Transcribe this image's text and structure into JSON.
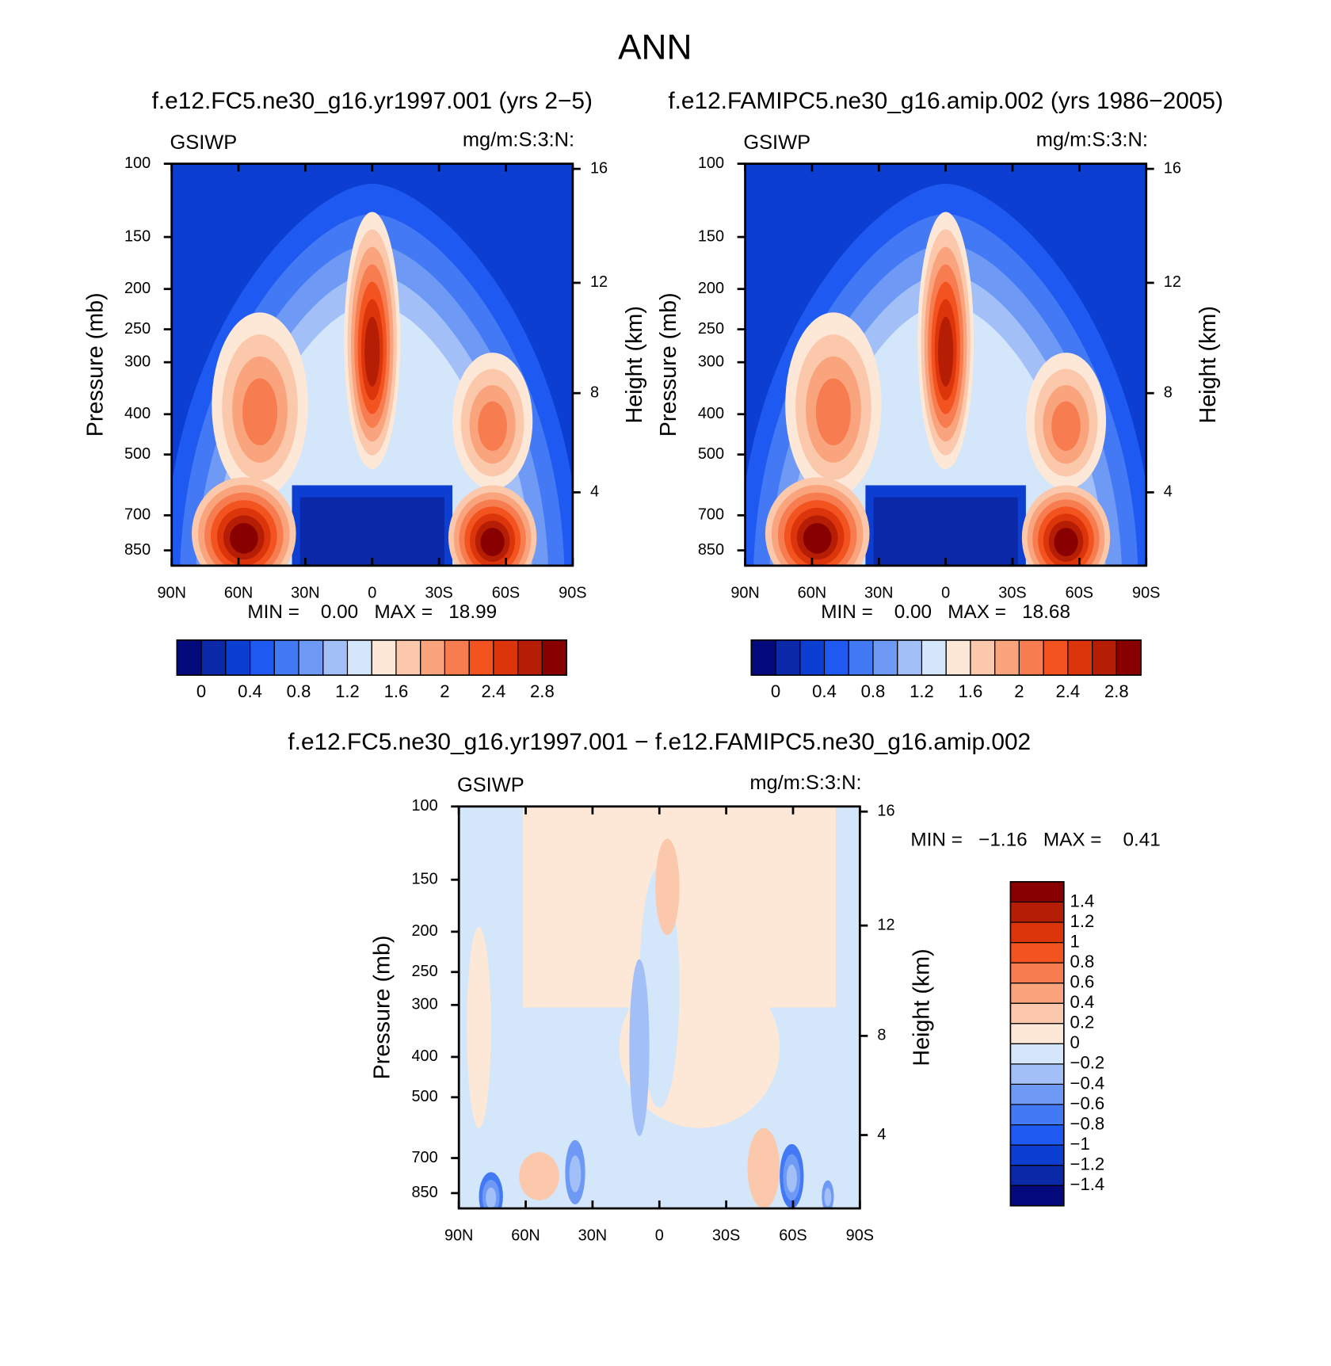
{
  "title": "ANN",
  "chart_data": [
    {
      "type": "contour",
      "title": "f.e12.FC5.ne30_g16.yr1997.001 (yrs 2−5)",
      "left_label": "GSIWP",
      "right_label": "mg/m:S:3:N:",
      "ylabel": "Pressure (mb)",
      "y2label": "Height (km)",
      "xlim": [
        90,
        -90
      ],
      "xticks": [
        {
          "value": 90,
          "label": "90N"
        },
        {
          "value": 60,
          "label": "60N"
        },
        {
          "value": 30,
          "label": "30N"
        },
        0,
        {
          "value": -30,
          "label": "30S"
        },
        {
          "value": -60,
          "label": "60S"
        },
        {
          "value": -90,
          "label": "90S"
        }
      ],
      "ylim": [
        100,
        925
      ],
      "yscale": "log",
      "yticks": [
        100,
        150,
        200,
        250,
        300,
        400,
        500,
        700,
        850
      ],
      "y2scale": "standard-atmosphere",
      "y2ticks": [
        4,
        8,
        12,
        16
      ],
      "stats": "MIN =    0.00   MAX =   18.99",
      "colorbar": "horizontal",
      "levels": [
        0,
        0.2,
        0.4,
        0.6,
        0.8,
        1,
        1.2,
        1.4,
        1.6,
        1.8,
        2,
        2.2,
        2.4,
        2.6,
        2.8
      ],
      "colorbar_ticks": [
        0,
        0.4,
        0.8,
        1.2,
        1.6,
        2,
        2.4,
        2.8
      ],
      "colors": [
        "#040a7c",
        "#0a28a8",
        "#0c3ed2",
        "#1e5af2",
        "#4479f5",
        "#6e9af6",
        "#a2c0f7",
        "#d4e6fa",
        "#fde8d8",
        "#fcc8ac",
        "#f9a47c",
        "#f77c50",
        "#f3531f",
        "#dc350b",
        "#b51d05",
        "#880000"
      ]
    },
    {
      "type": "contour",
      "title": "f.e12.FAMIPC5.ne30_g16.amip.002 (yrs 1986−2005)",
      "left_label": "GSIWP",
      "right_label": "mg/m:S:3:N:",
      "ylabel": "Pressure (mb)",
      "y2label": "Height (km)",
      "xlim": [
        90,
        -90
      ],
      "xticks": [
        {
          "value": 90,
          "label": "90N"
        },
        {
          "value": 60,
          "label": "60N"
        },
        {
          "value": 30,
          "label": "30N"
        },
        0,
        {
          "value": -30,
          "label": "30S"
        },
        {
          "value": -60,
          "label": "60S"
        },
        {
          "value": -90,
          "label": "90S"
        }
      ],
      "ylim": [
        100,
        925
      ],
      "yscale": "log",
      "yticks": [
        100,
        150,
        200,
        250,
        300,
        400,
        500,
        700,
        850
      ],
      "y2scale": "standard-atmosphere",
      "y2ticks": [
        4,
        8,
        12,
        16
      ],
      "stats": "MIN =    0.00   MAX =   18.68",
      "colorbar": "horizontal",
      "levels": [
        0,
        0.2,
        0.4,
        0.6,
        0.8,
        1,
        1.2,
        1.4,
        1.6,
        1.8,
        2,
        2.2,
        2.4,
        2.6,
        2.8
      ],
      "colorbar_ticks": [
        0,
        0.4,
        0.8,
        1.2,
        1.6,
        2,
        2.4,
        2.8
      ],
      "colors": [
        "#040a7c",
        "#0a28a8",
        "#0c3ed2",
        "#1e5af2",
        "#4479f5",
        "#6e9af6",
        "#a2c0f7",
        "#d4e6fa",
        "#fde8d8",
        "#fcc8ac",
        "#f9a47c",
        "#f77c50",
        "#f3531f",
        "#dc350b",
        "#b51d05",
        "#880000"
      ]
    },
    {
      "type": "contour",
      "title": "f.e12.FC5.ne30_g16.yr1997.001 − f.e12.FAMIPC5.ne30_g16.amip.002",
      "left_label": "GSIWP",
      "right_label": "mg/m:S:3:N:",
      "ylabel": "Pressure (mb)",
      "y2label": "Height (km)",
      "xlim": [
        90,
        -90
      ],
      "xticks": [
        {
          "value": 90,
          "label": "90N"
        },
        {
          "value": 60,
          "label": "60N"
        },
        {
          "value": 30,
          "label": "30N"
        },
        0,
        {
          "value": -30,
          "label": "30S"
        },
        {
          "value": -60,
          "label": "60S"
        },
        {
          "value": -90,
          "label": "90S"
        }
      ],
      "ylim": [
        100,
        925
      ],
      "yscale": "log",
      "yticks": [
        100,
        150,
        200,
        250,
        300,
        400,
        500,
        700,
        850
      ],
      "y2scale": "standard-atmosphere",
      "y2ticks": [
        4,
        8,
        12,
        16
      ],
      "stats": "MIN =   −1.16   MAX =    0.41",
      "colorbar": "vertical",
      "levels": [
        -1.4,
        -1.2,
        -1,
        -0.8,
        -0.6,
        -0.4,
        -0.2,
        0,
        0.2,
        0.4,
        0.6,
        0.8,
        1,
        1.2,
        1.4
      ],
      "colorbar_ticks": [
        {
          "value": -1.4,
          "label": "−1.4"
        },
        {
          "value": -1.2,
          "label": "−1.2"
        },
        {
          "value": -1,
          "label": "−1"
        },
        {
          "value": -0.8,
          "label": "−0.8"
        },
        {
          "value": -0.6,
          "label": "−0.6"
        },
        {
          "value": -0.4,
          "label": "−0.4"
        },
        {
          "value": -0.2,
          "label": "−0.2"
        },
        0,
        0.2,
        0.4,
        0.6,
        0.8,
        1,
        1.2,
        1.4
      ],
      "colors": [
        "#040a7c",
        "#0a28a8",
        "#0c3ed2",
        "#1e5af2",
        "#4479f5",
        "#6e9af6",
        "#a2c0f7",
        "#d4e6fa",
        "#fde8d8",
        "#fcc8ac",
        "#f9a47c",
        "#f77c50",
        "#f3531f",
        "#dc350b",
        "#b51d05",
        "#880000"
      ]
    }
  ]
}
